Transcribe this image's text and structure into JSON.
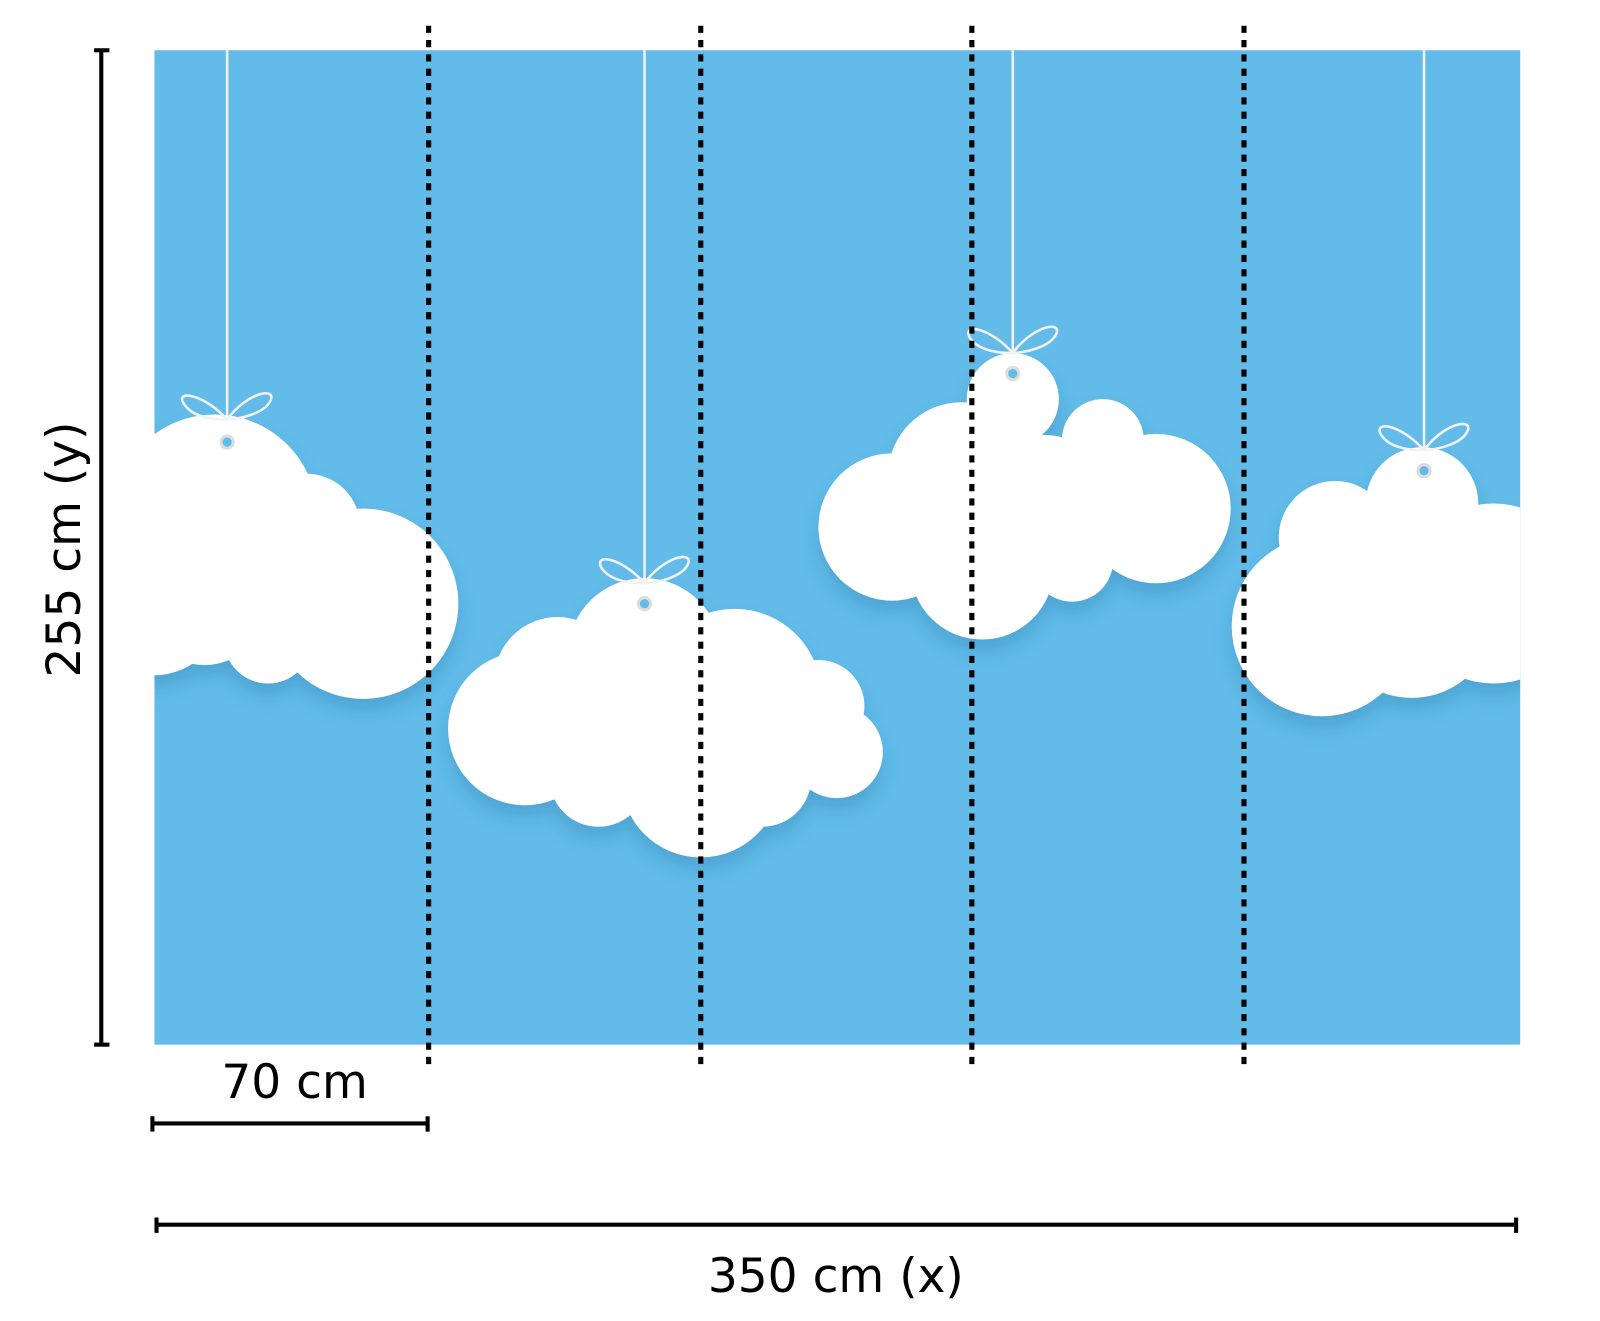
{
  "dimensions": {
    "height_label": "255 cm (y)",
    "panel_width_label": "70 cm",
    "total_width_label": "350 cm (x)"
  },
  "colors": {
    "sky": "#62BBE8",
    "cloud": "#FFFFFF",
    "lines": "#000000"
  },
  "panels": 5,
  "icons": [
    "cloud-icon",
    "string-icon",
    "bow-icon"
  ]
}
